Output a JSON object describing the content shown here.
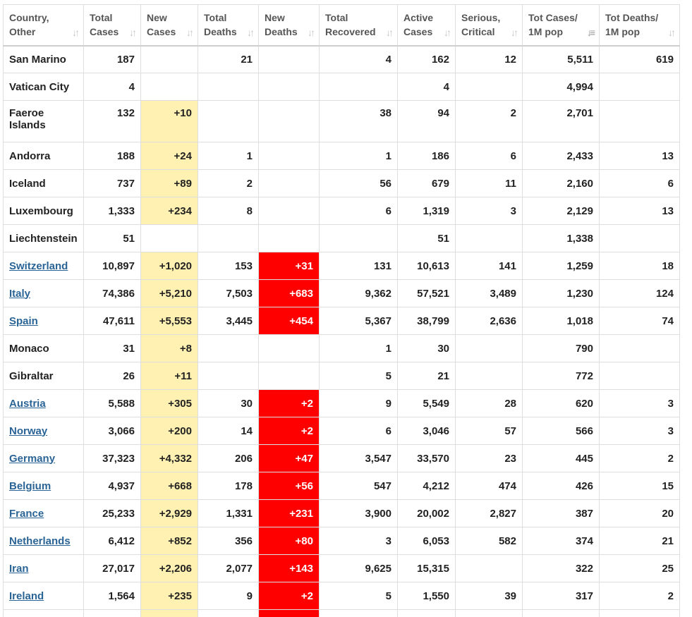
{
  "columns": [
    {
      "line1": "Country,",
      "line2": "Other"
    },
    {
      "line1": "Total",
      "line2": "Cases"
    },
    {
      "line1": "New",
      "line2": "Cases"
    },
    {
      "line1": "Total",
      "line2": "Deaths"
    },
    {
      "line1": "New",
      "line2": "Deaths"
    },
    {
      "line1": "Total",
      "line2": "Recovered"
    },
    {
      "line1": "Active",
      "line2": "Cases"
    },
    {
      "line1": "Serious,",
      "line2": "Critical"
    },
    {
      "line1": "Tot Cases/",
      "line2": "1M pop"
    },
    {
      "line1": "Tot Deaths/",
      "line2": "1M pop"
    }
  ],
  "sort_icons": {
    "default": "sort-updown-icon",
    "active": "sort-descending-icon"
  },
  "colors": {
    "new_cases_bg": "#fff1b1",
    "new_deaths_bg": "#ff0000",
    "link": "#2a6496"
  },
  "rows": [
    {
      "country": "San Marino",
      "link": false,
      "total_cases": "187",
      "new_cases": "",
      "total_deaths": "21",
      "new_deaths": "",
      "total_recovered": "4",
      "active_cases": "162",
      "serious": "12",
      "cases_per_1m": "5,511",
      "deaths_per_1m": "619"
    },
    {
      "country": "Vatican City",
      "link": false,
      "total_cases": "4",
      "new_cases": "",
      "total_deaths": "",
      "new_deaths": "",
      "total_recovered": "",
      "active_cases": "4",
      "serious": "",
      "cases_per_1m": "4,994",
      "deaths_per_1m": ""
    },
    {
      "country": "Faeroe Islands",
      "link": false,
      "total_cases": "132",
      "new_cases": "+10",
      "total_deaths": "",
      "new_deaths": "",
      "total_recovered": "38",
      "active_cases": "94",
      "serious": "2",
      "cases_per_1m": "2,701",
      "deaths_per_1m": ""
    },
    {
      "country": "Andorra",
      "link": false,
      "total_cases": "188",
      "new_cases": "+24",
      "total_deaths": "1",
      "new_deaths": "",
      "total_recovered": "1",
      "active_cases": "186",
      "serious": "6",
      "cases_per_1m": "2,433",
      "deaths_per_1m": "13"
    },
    {
      "country": "Iceland",
      "link": false,
      "total_cases": "737",
      "new_cases": "+89",
      "total_deaths": "2",
      "new_deaths": "",
      "total_recovered": "56",
      "active_cases": "679",
      "serious": "11",
      "cases_per_1m": "2,160",
      "deaths_per_1m": "6"
    },
    {
      "country": "Luxembourg",
      "link": false,
      "total_cases": "1,333",
      "new_cases": "+234",
      "total_deaths": "8",
      "new_deaths": "",
      "total_recovered": "6",
      "active_cases": "1,319",
      "serious": "3",
      "cases_per_1m": "2,129",
      "deaths_per_1m": "13"
    },
    {
      "country": "Liechtenstein",
      "link": false,
      "total_cases": "51",
      "new_cases": "",
      "total_deaths": "",
      "new_deaths": "",
      "total_recovered": "",
      "active_cases": "51",
      "serious": "",
      "cases_per_1m": "1,338",
      "deaths_per_1m": ""
    },
    {
      "country": "Switzerland",
      "link": true,
      "total_cases": "10,897",
      "new_cases": "+1,020",
      "total_deaths": "153",
      "new_deaths": "+31",
      "total_recovered": "131",
      "active_cases": "10,613",
      "serious": "141",
      "cases_per_1m": "1,259",
      "deaths_per_1m": "18"
    },
    {
      "country": "Italy",
      "link": true,
      "total_cases": "74,386",
      "new_cases": "+5,210",
      "total_deaths": "7,503",
      "new_deaths": "+683",
      "total_recovered": "9,362",
      "active_cases": "57,521",
      "serious": "3,489",
      "cases_per_1m": "1,230",
      "deaths_per_1m": "124"
    },
    {
      "country": "Spain",
      "link": true,
      "total_cases": "47,611",
      "new_cases": "+5,553",
      "total_deaths": "3,445",
      "new_deaths": "+454",
      "total_recovered": "5,367",
      "active_cases": "38,799",
      "serious": "2,636",
      "cases_per_1m": "1,018",
      "deaths_per_1m": "74"
    },
    {
      "country": "Monaco",
      "link": false,
      "total_cases": "31",
      "new_cases": "+8",
      "total_deaths": "",
      "new_deaths": "",
      "total_recovered": "1",
      "active_cases": "30",
      "serious": "",
      "cases_per_1m": "790",
      "deaths_per_1m": ""
    },
    {
      "country": "Gibraltar",
      "link": false,
      "total_cases": "26",
      "new_cases": "+11",
      "total_deaths": "",
      "new_deaths": "",
      "total_recovered": "5",
      "active_cases": "21",
      "serious": "",
      "cases_per_1m": "772",
      "deaths_per_1m": ""
    },
    {
      "country": "Austria",
      "link": true,
      "total_cases": "5,588",
      "new_cases": "+305",
      "total_deaths": "30",
      "new_deaths": "+2",
      "total_recovered": "9",
      "active_cases": "5,549",
      "serious": "28",
      "cases_per_1m": "620",
      "deaths_per_1m": "3"
    },
    {
      "country": "Norway",
      "link": true,
      "total_cases": "3,066",
      "new_cases": "+200",
      "total_deaths": "14",
      "new_deaths": "+2",
      "total_recovered": "6",
      "active_cases": "3,046",
      "serious": "57",
      "cases_per_1m": "566",
      "deaths_per_1m": "3"
    },
    {
      "country": "Germany",
      "link": true,
      "total_cases": "37,323",
      "new_cases": "+4,332",
      "total_deaths": "206",
      "new_deaths": "+47",
      "total_recovered": "3,547",
      "active_cases": "33,570",
      "serious": "23",
      "cases_per_1m": "445",
      "deaths_per_1m": "2"
    },
    {
      "country": "Belgium",
      "link": true,
      "total_cases": "4,937",
      "new_cases": "+668",
      "total_deaths": "178",
      "new_deaths": "+56",
      "total_recovered": "547",
      "active_cases": "4,212",
      "serious": "474",
      "cases_per_1m": "426",
      "deaths_per_1m": "15"
    },
    {
      "country": "France",
      "link": true,
      "total_cases": "25,233",
      "new_cases": "+2,929",
      "total_deaths": "1,331",
      "new_deaths": "+231",
      "total_recovered": "3,900",
      "active_cases": "20,002",
      "serious": "2,827",
      "cases_per_1m": "387",
      "deaths_per_1m": "20"
    },
    {
      "country": "Netherlands",
      "link": true,
      "total_cases": "6,412",
      "new_cases": "+852",
      "total_deaths": "356",
      "new_deaths": "+80",
      "total_recovered": "3",
      "active_cases": "6,053",
      "serious": "582",
      "cases_per_1m": "374",
      "deaths_per_1m": "21"
    },
    {
      "country": "Iran",
      "link": true,
      "total_cases": "27,017",
      "new_cases": "+2,206",
      "total_deaths": "2,077",
      "new_deaths": "+143",
      "total_recovered": "9,625",
      "active_cases": "15,315",
      "serious": "",
      "cases_per_1m": "322",
      "deaths_per_1m": "25"
    },
    {
      "country": "Ireland",
      "link": true,
      "total_cases": "1,564",
      "new_cases": "+235",
      "total_deaths": "9",
      "new_deaths": "+2",
      "total_recovered": "5",
      "active_cases": "1,550",
      "serious": "39",
      "cases_per_1m": "317",
      "deaths_per_1m": "2"
    },
    {
      "country": "",
      "link": false,
      "total_cases": "",
      "new_cases": "",
      "total_deaths": "",
      "new_deaths": "",
      "total_recovered": "",
      "active_cases": "",
      "serious": "",
      "cases_per_1m": "",
      "deaths_per_1m": "",
      "partial": true
    }
  ]
}
